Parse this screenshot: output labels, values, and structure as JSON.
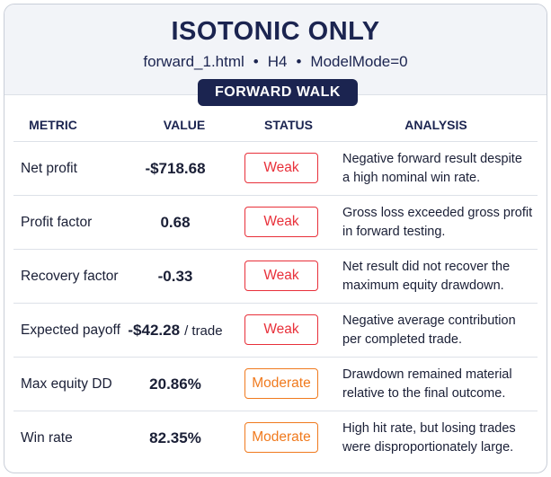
{
  "header": {
    "title": "ISOTONIC ONLY",
    "subtitle": [
      "forward_1.html",
      "H4",
      "ModelMode=0"
    ],
    "separator": "•"
  },
  "badge": "FORWARD WALK",
  "table": {
    "columns": [
      "METRIC",
      "VALUE",
      "STATUS",
      "ANALYSIS"
    ],
    "rows": [
      {
        "metric": "Net profit",
        "value": "-$718.68",
        "status": {
          "text": "Weak",
          "color": "#e8303a"
        },
        "analysis": [
          "Negative forward result despite",
          "a high nominal win rate."
        ]
      },
      {
        "metric": "Profit factor",
        "value": "0.68",
        "status": {
          "text": "Weak",
          "color": "#e8303a"
        },
        "analysis": [
          "Gross loss exceeded gross profit",
          "in forward testing."
        ]
      },
      {
        "metric": "Recovery factor",
        "value": "-0.33",
        "status": {
          "text": "Weak",
          "color": "#e8303a"
        },
        "analysis": [
          "Net result did not recover the",
          "maximum equity drawdown."
        ]
      },
      {
        "metric": "Expected payoff",
        "value": "-$42.28",
        "unit": "/ trade",
        "status": {
          "text": "Weak",
          "color": "#e8303a"
        },
        "analysis": [
          "Negative average contribution",
          "per completed trade."
        ]
      },
      {
        "metric": "Max equity DD",
        "value": "20.86%",
        "status": {
          "text": "Moderate",
          "color": "#f07a1e"
        },
        "analysis": [
          "Drawdown remained material",
          "relative to the final outcome."
        ]
      },
      {
        "metric": "Win rate",
        "value": "82.35%",
        "status": {
          "text": "Moderate",
          "color": "#f07a1e"
        },
        "analysis": [
          "High hit rate, but losing trades",
          "were disproportionately large."
        ]
      }
    ]
  }
}
